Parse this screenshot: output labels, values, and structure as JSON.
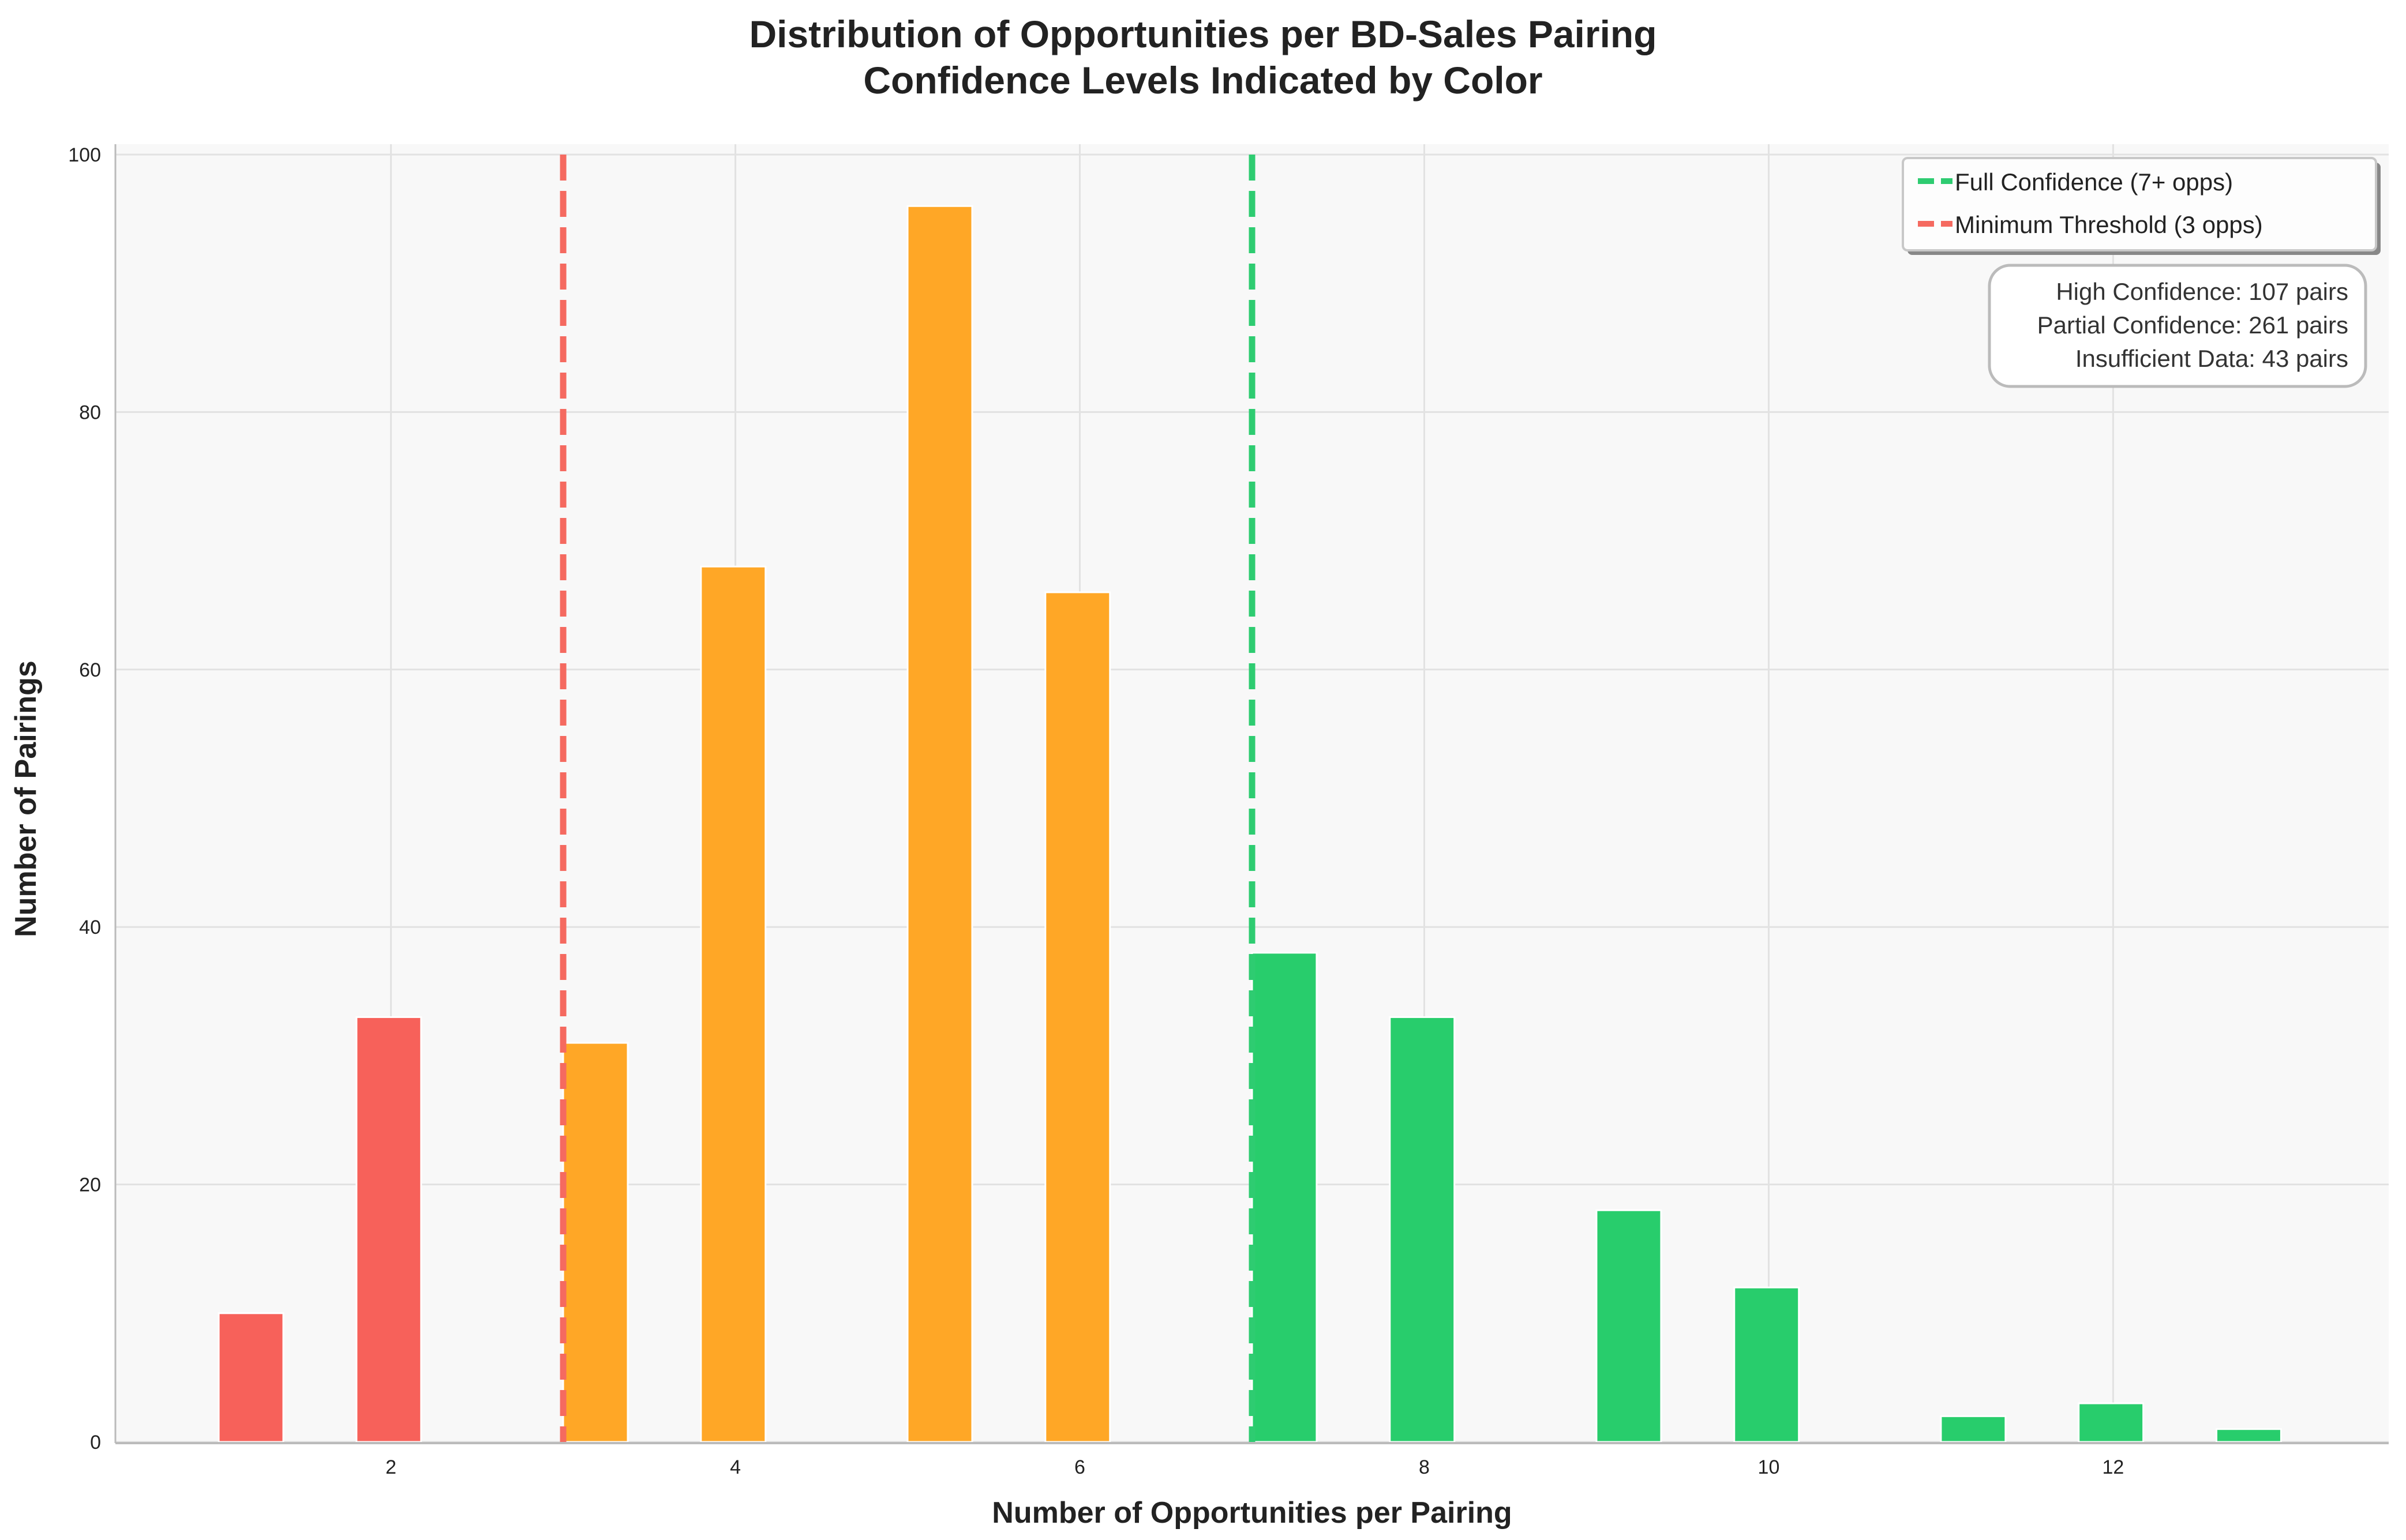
{
  "chart_data": {
    "type": "bar",
    "title": "Distribution of Opportunities per BD-Sales Pairing",
    "subtitle": "Confidence Levels Indicated by Color",
    "xlabel": "Number of Opportunities per Pairing",
    "ylabel": "Number of Pairings",
    "xlim": [
      0.4,
      13.6
    ],
    "ylim": [
      0,
      100
    ],
    "xticks": [
      2,
      4,
      6,
      8,
      10,
      12
    ],
    "yticks": [
      0,
      20,
      40,
      60,
      80,
      100
    ],
    "grid": true,
    "x": [
      1,
      2,
      3,
      4,
      5,
      6,
      7,
      8,
      9,
      10,
      11,
      12,
      13
    ],
    "values": [
      10,
      33,
      31,
      68,
      96,
      66,
      38,
      33,
      18,
      12,
      2,
      3,
      1
    ],
    "categories_by_bar": [
      "insufficient",
      "insufficient",
      "partial",
      "partial",
      "partial",
      "partial",
      "high",
      "high",
      "high",
      "high",
      "high",
      "high",
      "high"
    ],
    "colors": {
      "insufficient": "#f7615a",
      "partial": "#ffa726",
      "high": "#28cd6c"
    },
    "reference_lines": [
      {
        "x": 7,
        "label": "Full Confidence (7+ opps)",
        "color": "#2ecc71",
        "style": "dashed"
      },
      {
        "x": 3,
        "label": "Minimum Threshold (3 opps)",
        "color": "#f56a60",
        "style": "dashed"
      }
    ],
    "legend_placement": "top-right",
    "summary_box": [
      "High Confidence: 107 pairs",
      "Partial Confidence: 261 pairs",
      "Insufficient Data: 43 pairs"
    ]
  }
}
